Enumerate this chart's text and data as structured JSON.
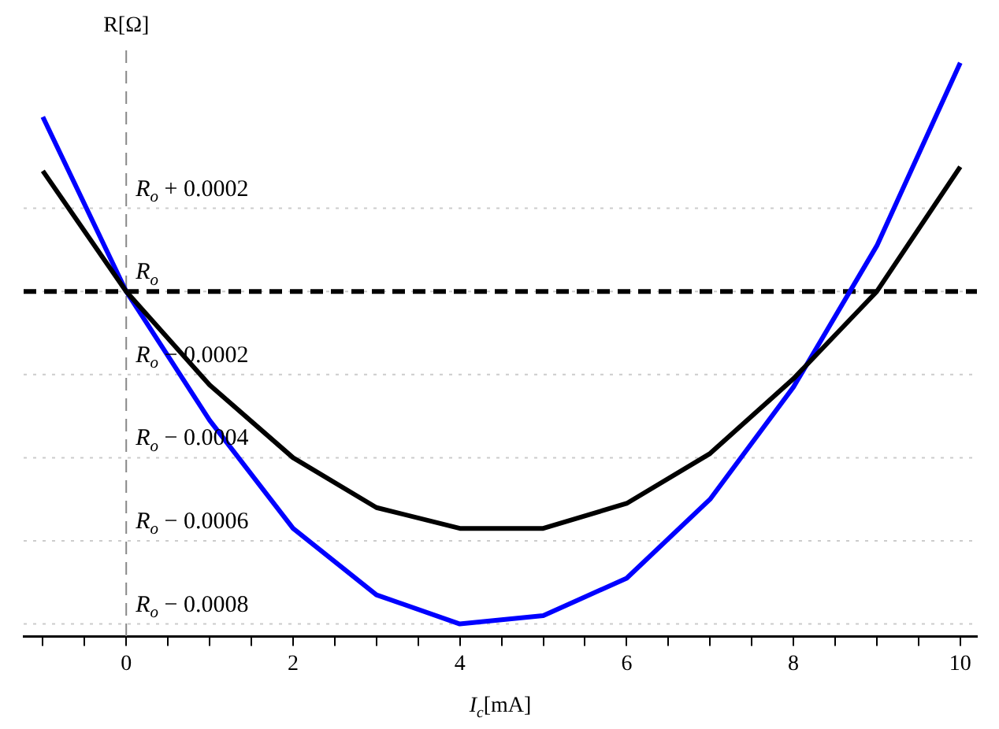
{
  "chart_data": {
    "type": "line",
    "xlabel": "I$_{c}$[mA]",
    "ylabel": "R[Ω]",
    "x": [
      -1,
      0,
      1,
      2,
      3,
      4,
      5,
      6,
      7,
      8,
      9,
      10
    ],
    "series": [
      {
        "color": "#000000",
        "values": [
          0.00029,
          0,
          -0.000225,
          -0.0004,
          -0.00052,
          -0.00057,
          -0.00057,
          -0.00051,
          -0.00039,
          -0.00021,
          0,
          0.0003
        ]
      },
      {
        "color": "#0000ff",
        "values": [
          0.00042,
          0,
          -0.00031,
          -0.00057,
          -0.00073,
          -0.0008,
          -0.00078,
          -0.00069,
          -0.0005,
          -0.00023,
          0.00011,
          0.00055
        ]
      }
    ],
    "xlim": [
      -1.23,
      10.2
    ],
    "xticks": [
      {
        "value": -1,
        "label": null
      },
      {
        "value": -0.5,
        "label": null
      },
      0,
      {
        "value": 0.5,
        "label": null
      },
      {
        "value": 1,
        "label": null
      },
      {
        "value": 1.5,
        "label": null
      },
      2,
      {
        "value": 2.5,
        "label": null
      },
      {
        "value": 3,
        "label": null
      },
      {
        "value": 3.5,
        "label": null
      },
      4,
      {
        "value": 4.5,
        "label": null
      },
      {
        "value": 5,
        "label": null
      },
      {
        "value": 5.5,
        "label": null
      },
      6,
      {
        "value": 6.5,
        "label": null
      },
      {
        "value": 7,
        "label": null
      },
      {
        "value": 7.5,
        "label": null
      },
      8,
      {
        "value": 8.5,
        "label": null
      },
      {
        "value": 9,
        "label": null
      },
      {
        "value": 9.5,
        "label": null
      },
      10
    ],
    "ylim": [
      -0.00083,
      0.00058
    ],
    "yticks": [
      {
        "value": 0.0002,
        "label": "R$_{o}$ + 0.0002"
      },
      {
        "value": 0,
        "label": "R$_{o}$"
      },
      {
        "value": -0.0002,
        "label": "R$_{o}$ − 0.0002"
      },
      {
        "value": -0.0004,
        "label": "R$_{o}$ − 0.0004"
      },
      {
        "value": -0.0006,
        "label": "R$_{o}$ − 0.0006"
      },
      {
        "value": -0.0008,
        "label": "R$_{o}$ − 0.0008"
      }
    ],
    "ref_lines": [
      {
        "axis": "y",
        "value": 0,
        "label": null,
        "color": "#000000",
        "line_style": "dashed"
      },
      {
        "axis": "x",
        "value": 0,
        "label": null,
        "color": "#888888",
        "line_style": "dashed"
      }
    ],
    "grid": "y",
    "legend": false,
    "marker": "none",
    "line_style": "solid"
  }
}
